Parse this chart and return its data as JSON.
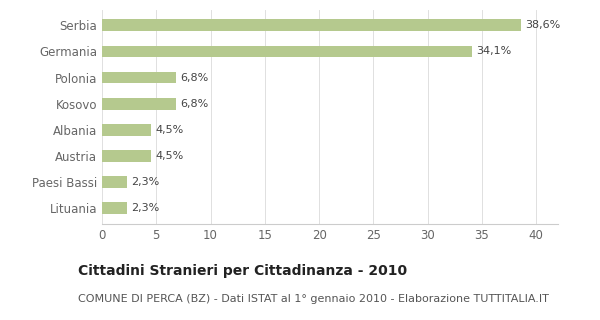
{
  "categories": [
    "Lituania",
    "Paesi Bassi",
    "Austria",
    "Albania",
    "Kosovo",
    "Polonia",
    "Germania",
    "Serbia"
  ],
  "values": [
    2.3,
    2.3,
    4.5,
    4.5,
    6.8,
    6.8,
    34.1,
    38.6
  ],
  "labels": [
    "2,3%",
    "2,3%",
    "4,5%",
    "4,5%",
    "6,8%",
    "6,8%",
    "34,1%",
    "38,6%"
  ],
  "bar_color": "#b5c98e",
  "background_color": "#ffffff",
  "title": "Cittadini Stranieri per Cittadinanza - 2010",
  "subtitle": "COMUNE DI PERCA (BZ) - Dati ISTAT al 1° gennaio 2010 - Elaborazione TUTTITALIA.IT",
  "title_fontsize": 10,
  "subtitle_fontsize": 8,
  "xlim": [
    0,
    42
  ],
  "xticks": [
    0,
    5,
    10,
    15,
    20,
    25,
    30,
    35,
    40
  ],
  "tick_color": "#666666",
  "label_fontsize": 8,
  "ytick_fontsize": 8.5,
  "xtick_fontsize": 8.5,
  "bar_height": 0.45
}
